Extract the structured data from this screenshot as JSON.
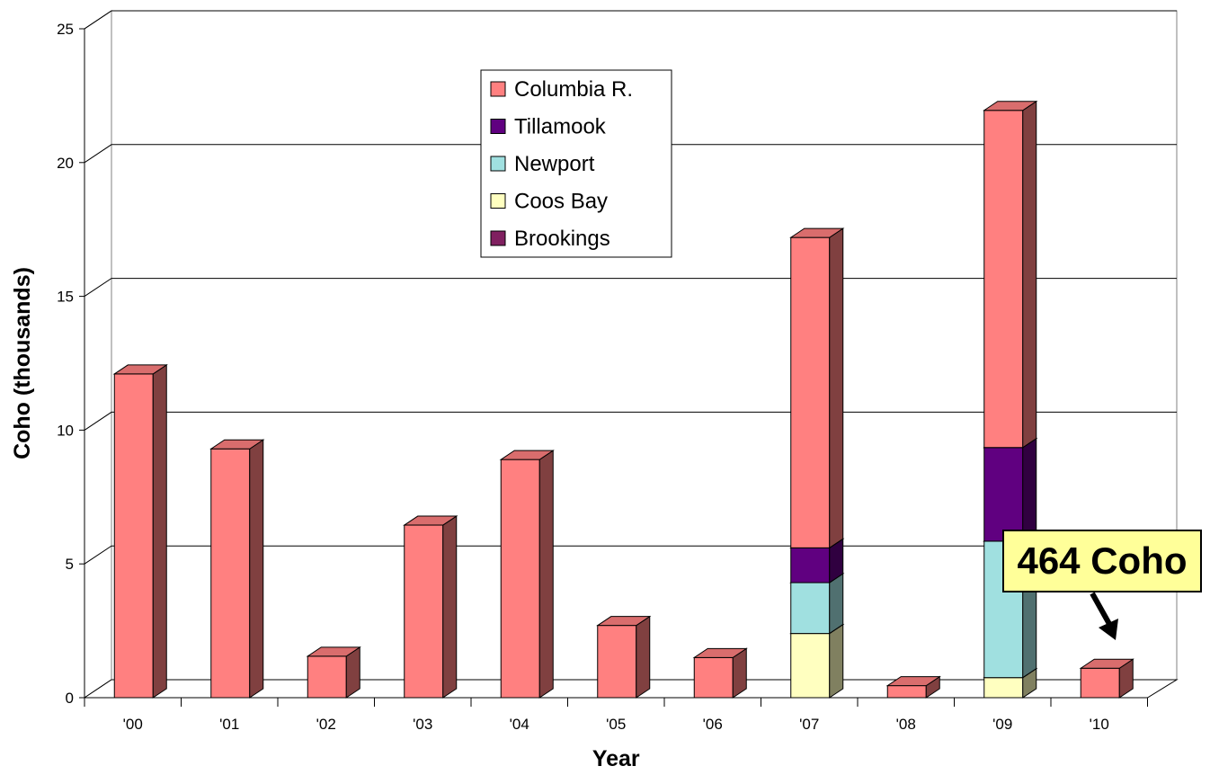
{
  "chart_data": {
    "type": "bar",
    "stacked": true,
    "style": "3d",
    "xlabel": "Year",
    "ylabel": "Coho (thousands)",
    "ylim": [
      0,
      25
    ],
    "yticks": [
      0,
      5,
      10,
      15,
      20,
      25
    ],
    "grid": true,
    "legend_position": "top-center",
    "categories": [
      "'00",
      "'01",
      "'02",
      "'03",
      "'04",
      "'05",
      "'06",
      "'07",
      "'08",
      "'09",
      "'10"
    ],
    "series": [
      {
        "name": "Coos Bay",
        "color": "#FFFFC0",
        "values": [
          0,
          0,
          0,
          0,
          0,
          0,
          0,
          2.4,
          0,
          0.75,
          0
        ]
      },
      {
        "name": "Newport",
        "color": "#A0E0E0",
        "values": [
          0,
          0,
          0,
          0,
          0,
          0,
          0,
          1.9,
          0,
          5.1,
          0
        ]
      },
      {
        "name": "Tillamook",
        "color": "#600080",
        "values": [
          0,
          0,
          0,
          0,
          0,
          0,
          0,
          1.3,
          0,
          3.5,
          0
        ]
      },
      {
        "name": "Brookings",
        "color": "#802060",
        "values": [
          0,
          0,
          0,
          0,
          0,
          0,
          0,
          0,
          0,
          0,
          0
        ]
      },
      {
        "name": "Columbia R.",
        "color": "#FF8080",
        "values": [
          12.1,
          9.3,
          1.55,
          6.45,
          8.9,
          2.7,
          1.5,
          11.6,
          0.45,
          12.6,
          1.1
        ]
      }
    ],
    "legend_order": [
      "Columbia R.",
      "Tillamook",
      "Newport",
      "Coos Bay",
      "Brookings"
    ],
    "annotations": [
      {
        "text": "464 Coho",
        "category": "'10",
        "arrow": true
      }
    ]
  }
}
